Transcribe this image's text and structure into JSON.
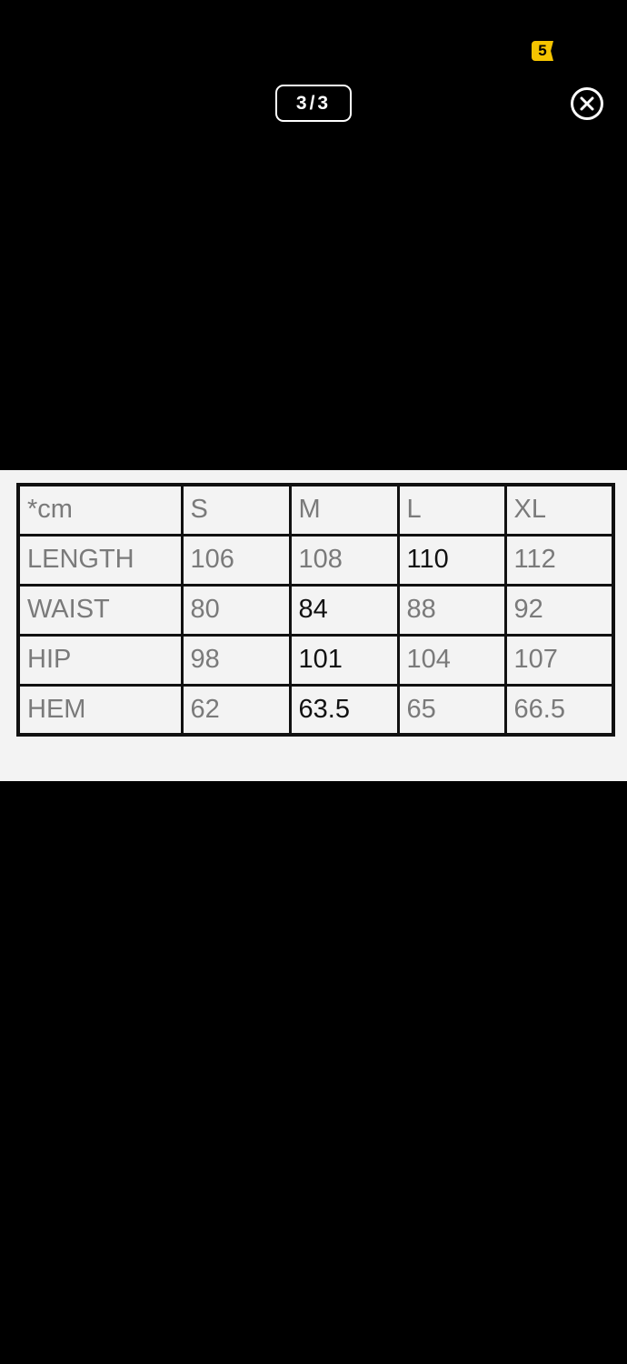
{
  "viewer": {
    "badge": "5",
    "counter": "3/3",
    "close_icon": "close-circle-icon"
  },
  "size_table": {
    "header": [
      "*cm",
      "S",
      "M",
      "L",
      "XL"
    ],
    "rows": [
      {
        "cells": [
          "LENGTH",
          "106",
          "108",
          "110",
          "112"
        ],
        "dark": [
          3
        ]
      },
      {
        "cells": [
          "WAIST",
          "80",
          "84",
          "88",
          "92"
        ],
        "dark": [
          2
        ]
      },
      {
        "cells": [
          "HIP",
          "98",
          "101",
          "104",
          "107"
        ],
        "dark": [
          2
        ]
      },
      {
        "cells": [
          "HEM",
          "62",
          "63.5",
          "65",
          "66.5"
        ],
        "dark": [
          2
        ]
      }
    ]
  },
  "colors": {
    "badge": "#f5c400",
    "background": "#000000",
    "image_bg": "#f3f3f3"
  }
}
